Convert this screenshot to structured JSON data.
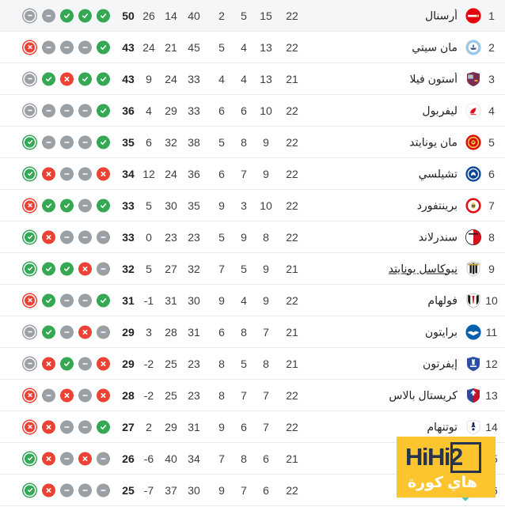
{
  "table": {
    "direction": "rtl",
    "form_note": "leftmost circle is latest match (outlined ring)",
    "form_colors": {
      "W": "#34A853",
      "L": "#EA4335",
      "D": "#9AA0A6"
    },
    "highlight_color": "#F5F6F7",
    "columns": [
      "position",
      "team",
      "played",
      "won",
      "drawn",
      "lost",
      "goals_for",
      "goals_against",
      "goal_diff",
      "points",
      "form"
    ],
    "rows": [
      {
        "position": "1",
        "team": "أرسنال",
        "logo": {
          "name": "arsenal-crest",
          "colors": [
            "#E4030F",
            "#FFFFFF",
            "#C8A650"
          ]
        },
        "played": "22",
        "won": "15",
        "drawn": "5",
        "lost": "2",
        "gf": "40",
        "ga": "14",
        "gd": "26",
        "points": "50",
        "form": [
          "D",
          "D",
          "W",
          "W",
          "W"
        ],
        "highlighted": true,
        "underlined": false
      },
      {
        "position": "2",
        "team": "مان سيتي",
        "logo": {
          "name": "man-city-crest",
          "colors": [
            "#9BC7E9",
            "#FFFFFF",
            "#24447A"
          ]
        },
        "played": "22",
        "won": "13",
        "drawn": "4",
        "lost": "5",
        "gf": "45",
        "ga": "21",
        "gd": "24",
        "points": "43",
        "form": [
          "L",
          "D",
          "D",
          "D",
          "W"
        ],
        "highlighted": false,
        "underlined": false
      },
      {
        "position": "3",
        "team": "أستون فيلا",
        "logo": {
          "name": "aston-villa-crest",
          "colors": [
            "#7B2D4E",
            "#F4C34C",
            "#9CC3E5"
          ]
        },
        "played": "21",
        "won": "13",
        "drawn": "4",
        "lost": "4",
        "gf": "33",
        "ga": "24",
        "gd": "9",
        "points": "43",
        "form": [
          "D",
          "W",
          "L",
          "W",
          "W"
        ],
        "highlighted": false,
        "underlined": false
      },
      {
        "position": "4",
        "team": "ليفربول",
        "logo": {
          "name": "liverpool-crest",
          "colors": [
            "#FFFFFF",
            "#D6131C",
            "#E8E8E8"
          ]
        },
        "played": "22",
        "won": "10",
        "drawn": "6",
        "lost": "6",
        "gf": "33",
        "ga": "29",
        "gd": "4",
        "points": "36",
        "form": [
          "D",
          "D",
          "D",
          "D",
          "W"
        ],
        "highlighted": false,
        "underlined": false
      },
      {
        "position": "5",
        "team": "مان يونايتد",
        "logo": {
          "name": "man-united-crest",
          "colors": [
            "#D8100F",
            "#F8D247",
            "#3B1A12"
          ]
        },
        "played": "22",
        "won": "9",
        "drawn": "8",
        "lost": "5",
        "gf": "38",
        "ga": "32",
        "gd": "6",
        "points": "35",
        "form": [
          "W",
          "D",
          "D",
          "D",
          "W"
        ],
        "highlighted": false,
        "underlined": false
      },
      {
        "position": "6",
        "team": "تشيلسي",
        "logo": {
          "name": "chelsea-crest",
          "colors": [
            "#0A4595",
            "#FFFFFF",
            "#D4AF37"
          ]
        },
        "played": "22",
        "won": "9",
        "drawn": "7",
        "lost": "6",
        "gf": "36",
        "ga": "24",
        "gd": "12",
        "points": "34",
        "form": [
          "W",
          "L",
          "D",
          "D",
          "L"
        ],
        "highlighted": false,
        "underlined": false
      },
      {
        "position": "7",
        "team": "برينتفورد",
        "logo": {
          "name": "brentford-crest",
          "colors": [
            "#E20E17",
            "#FFFFFF",
            "#F2C737"
          ]
        },
        "played": "22",
        "won": "10",
        "drawn": "3",
        "lost": "9",
        "gf": "35",
        "ga": "30",
        "gd": "5",
        "points": "33",
        "form": [
          "L",
          "W",
          "W",
          "D",
          "W"
        ],
        "highlighted": false,
        "underlined": false
      },
      {
        "position": "8",
        "team": "سندرلاند",
        "logo": {
          "name": "sunderland-crest",
          "colors": [
            "#D6131C",
            "#FFFFFF",
            "#1A1A1A"
          ]
        },
        "played": "22",
        "won": "8",
        "drawn": "9",
        "lost": "5",
        "gf": "23",
        "ga": "23",
        "gd": "0",
        "points": "33",
        "form": [
          "W",
          "L",
          "D",
          "D",
          "D"
        ],
        "highlighted": false,
        "underlined": false
      },
      {
        "position": "9",
        "team": "نيوكاسل يونايتد",
        "logo": {
          "name": "newcastle-crest",
          "colors": [
            "#1A1A1A",
            "#FFFFFF",
            "#C9A13B"
          ]
        },
        "played": "21",
        "won": "9",
        "drawn": "5",
        "lost": "7",
        "gf": "32",
        "ga": "27",
        "gd": "5",
        "points": "32",
        "form": [
          "W",
          "W",
          "W",
          "L",
          "D"
        ],
        "highlighted": false,
        "underlined": true
      },
      {
        "position": "10",
        "team": "فولهام",
        "logo": {
          "name": "fulham-crest",
          "colors": [
            "#1A1A1A",
            "#FFFFFF",
            "#D6131C"
          ]
        },
        "played": "22",
        "won": "9",
        "drawn": "4",
        "lost": "9",
        "gf": "30",
        "ga": "31",
        "gd": "-1",
        "points": "31",
        "form": [
          "L",
          "W",
          "D",
          "D",
          "W"
        ],
        "highlighted": false,
        "underlined": false
      },
      {
        "position": "11",
        "team": "برايتون",
        "logo": {
          "name": "brighton-crest",
          "colors": [
            "#0560AC",
            "#FFFFFF",
            "#0560AC"
          ]
        },
        "played": "21",
        "won": "7",
        "drawn": "8",
        "lost": "6",
        "gf": "31",
        "ga": "28",
        "gd": "3",
        "points": "29",
        "form": [
          "D",
          "W",
          "D",
          "L",
          "D"
        ],
        "highlighted": false,
        "underlined": false
      },
      {
        "position": "12",
        "team": "إيفرتون",
        "logo": {
          "name": "everton-crest",
          "colors": [
            "#2D4FA1",
            "#FFFFFF",
            "#E8C26E"
          ]
        },
        "played": "21",
        "won": "8",
        "drawn": "5",
        "lost": "8",
        "gf": "23",
        "ga": "25",
        "gd": "-2",
        "points": "29",
        "form": [
          "D",
          "L",
          "W",
          "D",
          "L"
        ],
        "highlighted": false,
        "underlined": false
      },
      {
        "position": "13",
        "team": "كريستال بالاس",
        "logo": {
          "name": "crystal-palace-crest",
          "colors": [
            "#2B4C9B",
            "#C4122E",
            "#FFFFFF"
          ]
        },
        "played": "22",
        "won": "7",
        "drawn": "7",
        "lost": "8",
        "gf": "23",
        "ga": "25",
        "gd": "-2",
        "points": "28",
        "form": [
          "L",
          "D",
          "L",
          "D",
          "L"
        ],
        "highlighted": false,
        "underlined": false
      },
      {
        "position": "14",
        "team": "توتنهام",
        "logo": {
          "name": "tottenham-crest",
          "colors": [
            "#172B5C",
            "#FFFFFF",
            "#D3D7E2"
          ]
        },
        "played": "22",
        "won": "7",
        "drawn": "6",
        "lost": "9",
        "gf": "31",
        "ga": "29",
        "gd": "2",
        "points": "27",
        "form": [
          "L",
          "L",
          "D",
          "D",
          "W"
        ],
        "highlighted": false,
        "underlined": false
      },
      {
        "position": "15",
        "team": "",
        "logo": null,
        "played": "21",
        "won": "6",
        "drawn": "8",
        "lost": "7",
        "gf": "34",
        "ga": "40",
        "gd": "-6",
        "points": "26",
        "form": [
          "W",
          "L",
          "D",
          "L",
          "D"
        ],
        "highlighted": false,
        "underlined": false,
        "hidden_by_watermark": true
      },
      {
        "position": "16",
        "team": "",
        "logo": null,
        "played": "22",
        "won": "6",
        "drawn": "7",
        "lost": "9",
        "gf": "30",
        "ga": "37",
        "gd": "-7",
        "points": "25",
        "form": [
          "W",
          "L",
          "D",
          "D",
          "D"
        ],
        "highlighted": false,
        "underlined": false,
        "hidden_by_watermark": true
      }
    ]
  },
  "watermark": {
    "title": "HiHi2",
    "subtitle": "هاي كورة",
    "bg_color": "#FCC52F",
    "title_color": "#263450",
    "subtitle_color": "#FFFFFF",
    "chevron_color": "#52C3B6"
  }
}
